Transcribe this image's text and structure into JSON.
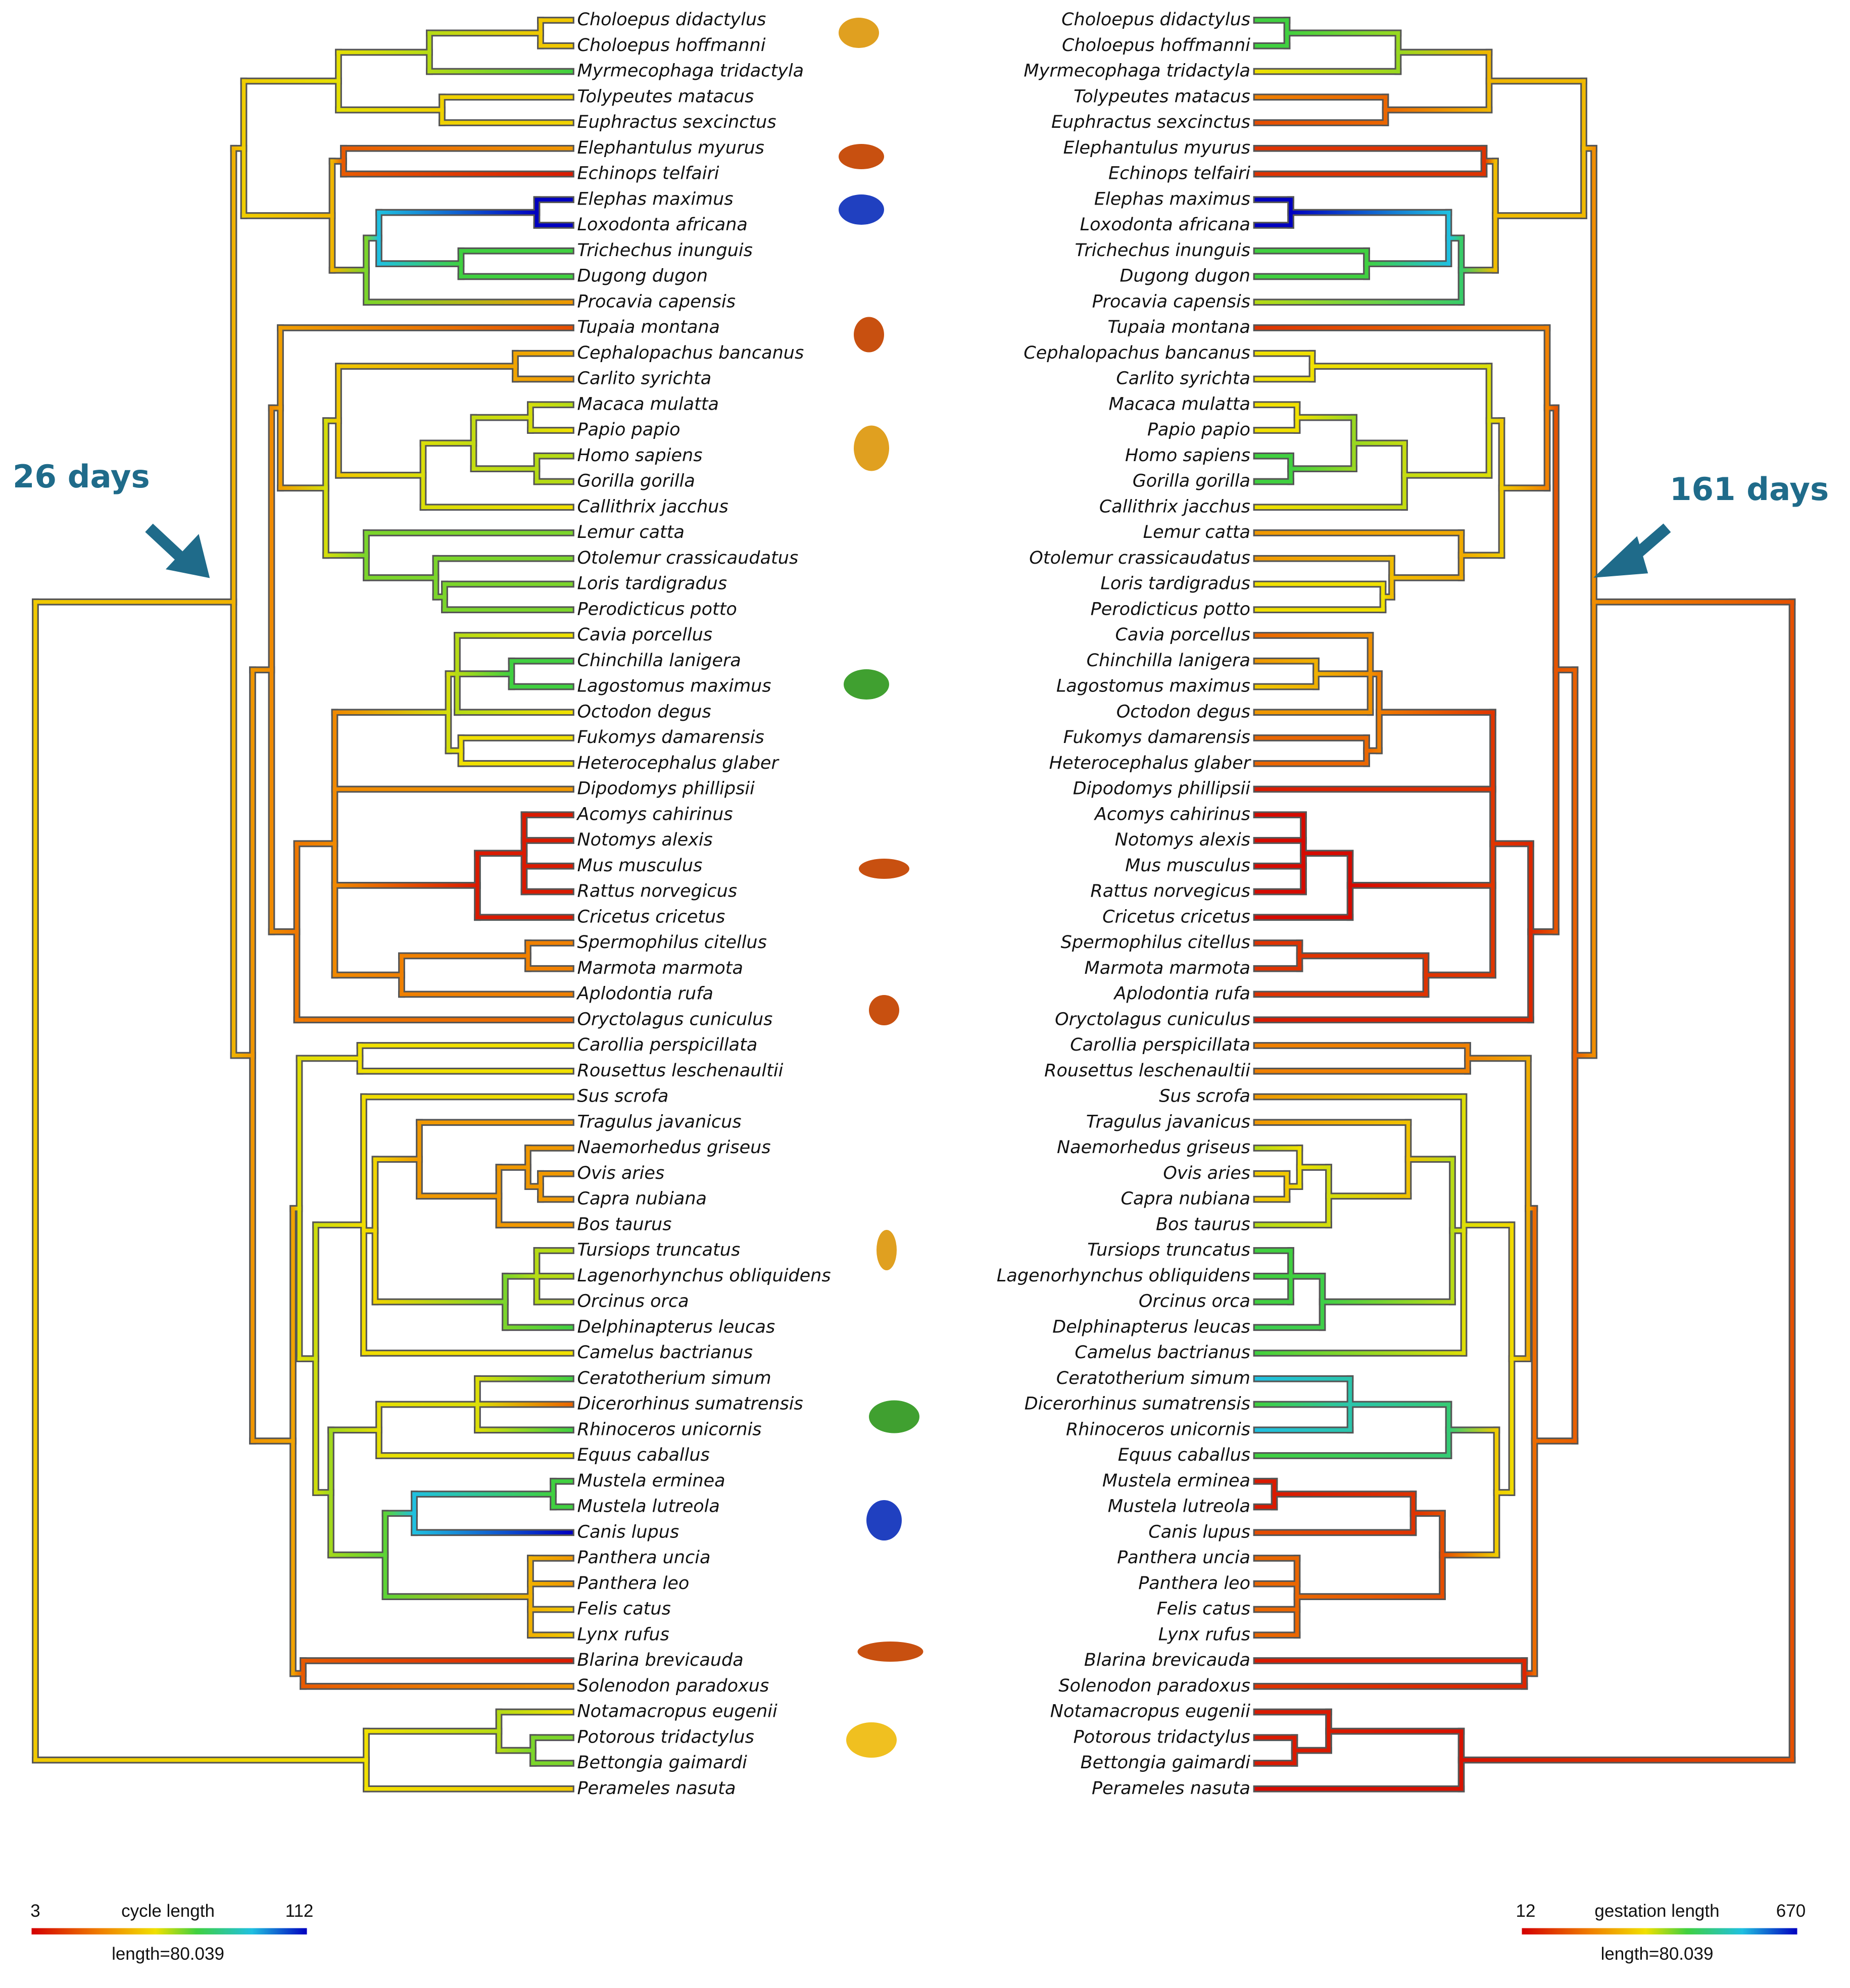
{
  "left_label": "26 days",
  "right_label": "161 days",
  "taxa": [
    "Choloepus didactylus",
    "Choloepus hoffmanni",
    "Myrmecophaga tridactyla",
    "Tolypeutes matacus",
    "Euphractus sexcinctus",
    "Elephantulus myurus",
    "Echinops telfairi",
    "Elephas maximus",
    "Loxodonta africana",
    "Trichechus inunguis",
    "Dugong dugon",
    "Procavia capensis",
    "Tupaia montana",
    "Cephalopachus bancanus",
    "Carlito syrichta",
    "Macaca mulatta",
    "Papio papio",
    "Homo sapiens",
    "Gorilla gorilla",
    "Callithrix jacchus",
    "Lemur catta",
    "Otolemur crassicaudatus",
    "Loris tardigradus",
    "Perodicticus potto",
    "Cavia porcellus",
    "Chinchilla lanigera",
    "Lagostomus maximus",
    "Octodon degus",
    "Fukomys damarensis",
    "Heterocephalus glaber",
    "Dipodomys phillipsii",
    "Acomys cahirinus",
    "Notomys alexis",
    "Mus musculus",
    "Rattus norvegicus",
    "Cricetus cricetus",
    "Spermophilus citellus",
    "Marmota marmota",
    "Aplodontia rufa",
    "Oryctolagus cuniculus",
    "Carollia perspicillata",
    "Rousettus leschenaultii",
    "Sus scrofa",
    "Tragulus javanicus",
    "Naemorhedus griseus",
    "Ovis aries",
    "Capra nubiana",
    "Bos taurus",
    "Tursiops truncatus",
    "Lagenorhynchus obliquidens",
    "Orcinus orca",
    "Delphinapterus leucas",
    "Camelus bactrianus",
    "Ceratotherium simum",
    "Dicerorhinus sumatrensis",
    "Rhinoceros unicornis",
    "Equus caballus",
    "Mustela erminea",
    "Mustela lutreola",
    "Canis lupus",
    "Panthera uncia",
    "Panthera leo",
    "Felis catus",
    "Lynx rufus",
    "Blarina brevicauda",
    "Solenodon paradoxus",
    "Notamacropus eugenii",
    "Potorous tridactylus",
    "Bettongia gaimardi",
    "Perameles nasuta"
  ],
  "legends": [
    {
      "min": 3,
      "title": "cycle length",
      "max": 112,
      "length": "length=80.039"
    },
    {
      "min": 12,
      "title": "gestation length",
      "max": 670,
      "length": "length=80.039"
    }
  ]
}
